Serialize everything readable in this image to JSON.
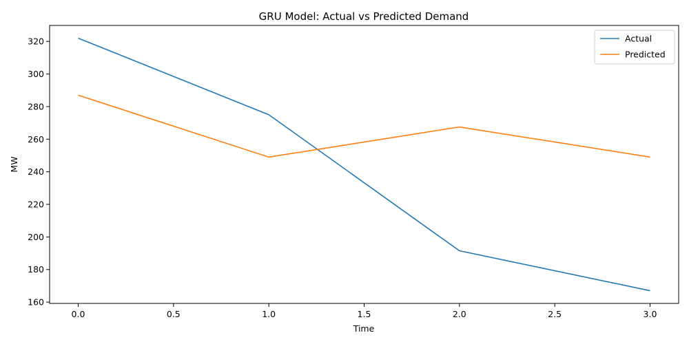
{
  "chart_data": {
    "type": "line",
    "title": "GRU Model: Actual vs Predicted Demand",
    "xlabel": "Time",
    "ylabel": "MW",
    "x": [
      0,
      1,
      2,
      3
    ],
    "series": [
      {
        "name": "Actual",
        "values": [
          322,
          275,
          191.5,
          167
        ],
        "color": "#1f77b4"
      },
      {
        "name": "Predicted",
        "values": [
          287,
          249,
          267.5,
          249
        ],
        "color": "#ff7f0e"
      }
    ],
    "xlim": [
      -0.15,
      3.15
    ],
    "ylim": [
      159.2,
      329.8
    ],
    "xticks": [
      0.0,
      0.5,
      1.0,
      1.5,
      2.0,
      2.5,
      3.0
    ],
    "xtick_labels": [
      "0.0",
      "0.5",
      "1.0",
      "1.5",
      "2.0",
      "2.5",
      "3.0"
    ],
    "yticks": [
      160,
      180,
      200,
      220,
      240,
      260,
      280,
      300,
      320
    ],
    "ytick_labels": [
      "160",
      "180",
      "200",
      "220",
      "240",
      "260",
      "280",
      "300",
      "320"
    ],
    "grid": false,
    "legend_position": "top-right"
  }
}
